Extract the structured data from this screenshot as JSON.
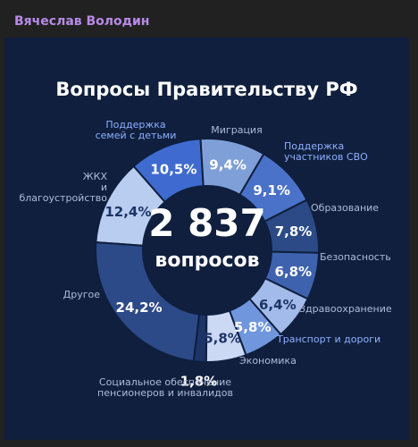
{
  "header": {
    "author": "Вячеслав Володин"
  },
  "chart_data": {
    "type": "donut",
    "title": "Вопросы Правительству РФ",
    "center_value": "2 837",
    "center_label": "вопросов",
    "categories": [
      "Миграция",
      "Поддержка\nучастников СВО",
      "Образование",
      "Безопасность",
      "Здравоохранение",
      "Транспорт и дороги",
      "Экономика",
      "Социальное обеспечение\nпенсионеров и инвалидов",
      "Другое",
      "ЖКХ\nи\nблагоустройство",
      "Поддержка\nсемей с детьми"
    ],
    "values": [
      9.4,
      9.1,
      7.8,
      6.8,
      6.4,
      5.8,
      5.8,
      1.8,
      24.2,
      12.4,
      10.5
    ],
    "value_labels": [
      "9,4%",
      "9,1%",
      "7,8%",
      "6,8%",
      "6,4%",
      "5,8%",
      "5,8%",
      "1,8%",
      "24,2%",
      "12,4%",
      "10,5%"
    ],
    "colors": [
      "#7f9fd8",
      "#4a72c9",
      "#2b4a86",
      "#3e62ad",
      "#a3bbea",
      "#7096de",
      "#cbd9f5",
      "#1c3466",
      "#2c4a87",
      "#b9cdf0",
      "#3f6bd0"
    ]
  }
}
